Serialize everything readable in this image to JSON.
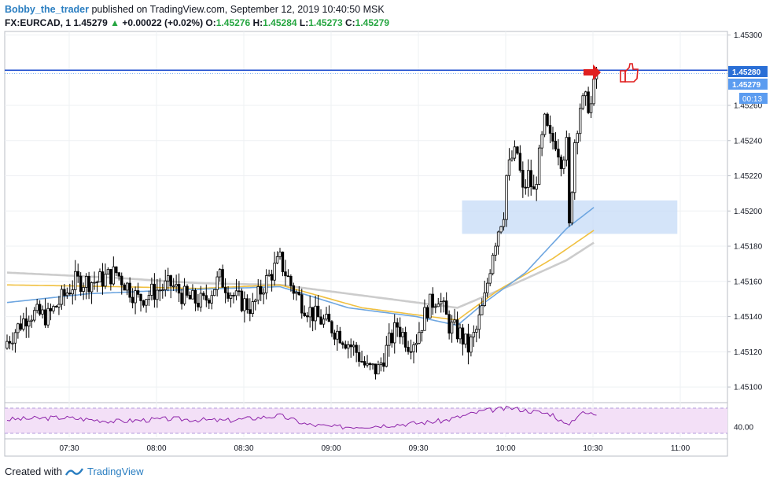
{
  "header": {
    "author": "Bobby_the_trader",
    "published": "published on TradingView.com, September 12, 2019 10:40:50 MSK"
  },
  "legend": {
    "symbol": "FX:EURCAD, 1",
    "last": "1.45279",
    "change_arrow": "▲",
    "change": "+0.00022 (+0.02%)",
    "o_label": "O:",
    "o": "1.45276",
    "h_label": "H:",
    "h": "1.45284",
    "l_label": "L:",
    "l": "1.45273",
    "c_label": "C:",
    "c": "1.45279"
  },
  "price_badges": {
    "line_price": "1.45280",
    "last_price": "1.45279",
    "countdown": "00:13"
  },
  "footer": {
    "created_with": "Created with",
    "brand": "TradingView"
  },
  "colors": {
    "bull": "#ffffff",
    "bear": "#000000",
    "ma_blue": "#6ea6e0",
    "ma_orange": "#f0c040",
    "ma_gray": "#cccccc",
    "zone": "#c6dbf7",
    "hline": "#1848cc",
    "rsi": "#8e24aa",
    "rsi_band": "#f3e0f7",
    "arrow": "#e02020"
  },
  "icons": [
    "right-arrow-icon",
    "thumbs-up-icon",
    "tradingview-logo-icon"
  ],
  "chart_data": {
    "type": "candlestick",
    "symbol": "FX:EURCAD",
    "timeframe": "1",
    "x_ticks": [
      "07:30",
      "08:00",
      "08:30",
      "09:00",
      "09:30",
      "10:00",
      "10:30",
      "11:00"
    ],
    "y_ticks": [
      "1.45100",
      "1.45120",
      "1.45140",
      "1.45160",
      "1.45180",
      "1.45200",
      "1.45220",
      "1.45240",
      "1.45260",
      "1.45280",
      "1.45300"
    ],
    "ylim": [
      1.45092,
      1.45302
    ],
    "horizontal_line": 1.4528,
    "support_zone": {
      "low": 1.45187,
      "high": 1.45206,
      "start": "09:45",
      "end": "10:59"
    },
    "close_path": [
      [
        0,
        1.45126
      ],
      [
        8,
        1.45142
      ],
      [
        15,
        1.4514
      ],
      [
        25,
        1.4516
      ],
      [
        33,
        1.4516
      ],
      [
        40,
        1.45165
      ],
      [
        48,
        1.4515
      ],
      [
        55,
        1.45155
      ],
      [
        60,
        1.45158
      ],
      [
        66,
        1.4515
      ],
      [
        72,
        1.45148
      ],
      [
        78,
        1.45162
      ],
      [
        84,
        1.4515
      ],
      [
        90,
        1.45145
      ],
      [
        94,
        1.45158
      ],
      [
        100,
        1.45172
      ],
      [
        104,
        1.45158
      ],
      [
        108,
        1.45148
      ],
      [
        113,
        1.4514
      ],
      [
        118,
        1.45135
      ],
      [
        122,
        1.4513
      ],
      [
        128,
        1.4512
      ],
      [
        132,
        1.4511
      ],
      [
        136,
        1.4511
      ],
      [
        140,
        1.45125
      ],
      [
        143,
        1.45135
      ],
      [
        147,
        1.45125
      ],
      [
        150,
        1.45128
      ],
      [
        154,
        1.45145
      ],
      [
        158,
        1.45152
      ],
      [
        162,
        1.45135
      ],
      [
        166,
        1.4513
      ],
      [
        169,
        1.45122
      ],
      [
        172,
        1.45132
      ],
      [
        175,
        1.4515
      ],
      [
        178,
        1.45178
      ],
      [
        180,
        1.4519
      ],
      [
        182,
        1.452
      ],
      [
        183,
        1.4522
      ],
      [
        185,
        1.4523
      ],
      [
        187,
        1.45233
      ],
      [
        189,
        1.4521
      ],
      [
        191,
        1.4522
      ],
      [
        193,
        1.4521
      ],
      [
        195,
        1.4523
      ],
      [
        197,
        1.4525
      ],
      [
        199,
        1.4524
      ],
      [
        201,
        1.4524
      ],
      [
        203,
        1.4523
      ],
      [
        205,
        1.45237
      ],
      [
        206,
        1.4519
      ],
      [
        208,
        1.4524
      ],
      [
        210,
        1.4526
      ],
      [
        212,
        1.45262
      ],
      [
        214,
        1.4526
      ],
      [
        215,
        1.4527
      ],
      [
        216,
        1.45279
      ]
    ],
    "series": [
      {
        "indicator": "MA",
        "color": "blue",
        "values": [
          [
            0,
            1.45148
          ],
          [
            30,
            1.45153
          ],
          [
            60,
            1.45155
          ],
          [
            100,
            1.45157
          ],
          [
            125,
            1.45145
          ],
          [
            150,
            1.4514
          ],
          [
            165,
            1.45135
          ],
          [
            175,
            1.45148
          ],
          [
            190,
            1.45165
          ],
          [
            205,
            1.4519
          ],
          [
            215,
            1.45202
          ]
        ]
      },
      {
        "indicator": "MA",
        "color": "orange",
        "values": [
          [
            0,
            1.45158
          ],
          [
            40,
            1.45157
          ],
          [
            70,
            1.45156
          ],
          [
            100,
            1.45158
          ],
          [
            130,
            1.45145
          ],
          [
            165,
            1.45138
          ],
          [
            180,
            1.45155
          ],
          [
            200,
            1.45173
          ],
          [
            215,
            1.45189
          ]
        ]
      },
      {
        "indicator": "MA",
        "color": "gray",
        "values": [
          [
            0,
            1.45165
          ],
          [
            40,
            1.45162
          ],
          [
            70,
            1.45159
          ],
          [
            100,
            1.45158
          ],
          [
            130,
            1.45152
          ],
          [
            165,
            1.45145
          ],
          [
            185,
            1.45158
          ],
          [
            205,
            1.45172
          ],
          [
            215,
            1.45182
          ]
        ]
      }
    ],
    "rsi": {
      "y_tick": "40.00",
      "band_low": 30,
      "band_high": 70,
      "values": [
        [
          0,
          52
        ],
        [
          20,
          55
        ],
        [
          40,
          49
        ],
        [
          60,
          53
        ],
        [
          80,
          50
        ],
        [
          100,
          58
        ],
        [
          110,
          44
        ],
        [
          120,
          40
        ],
        [
          135,
          42
        ],
        [
          150,
          46
        ],
        [
          160,
          50
        ],
        [
          175,
          66
        ],
        [
          185,
          70
        ],
        [
          200,
          60
        ],
        [
          205,
          42
        ],
        [
          210,
          62
        ],
        [
          216,
          61
        ]
      ]
    }
  }
}
